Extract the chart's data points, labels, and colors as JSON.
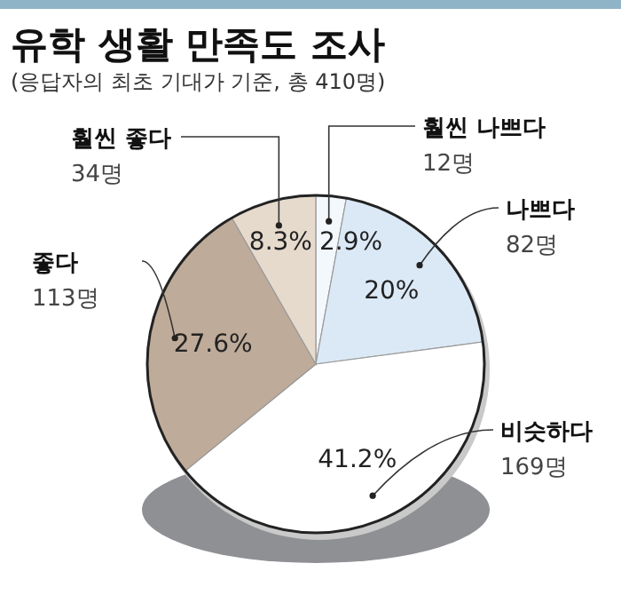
{
  "chart_data": {
    "type": "pie",
    "title": "유학 생활 만족도 조사",
    "subtitle": "(응답자의 최초 기대가 기준, 총 410명)",
    "categories": [
      "훨씬 나쁘다\n12명",
      "나쁘다\n82명",
      "비슷하다\n169명",
      "좋다\n113명",
      "훨씬 좋다\n34명"
    ],
    "values": [
      2.9,
      20,
      41.2,
      27.6,
      8.3
    ],
    "value_labels": [
      "2.9%",
      "20%",
      "41.2%",
      "27.6%",
      "8.3%"
    ],
    "colors": [
      "#f3f8fd",
      "#dbe9f6",
      "#ffffff",
      "#bfab99",
      "#e6dacd"
    ]
  }
}
